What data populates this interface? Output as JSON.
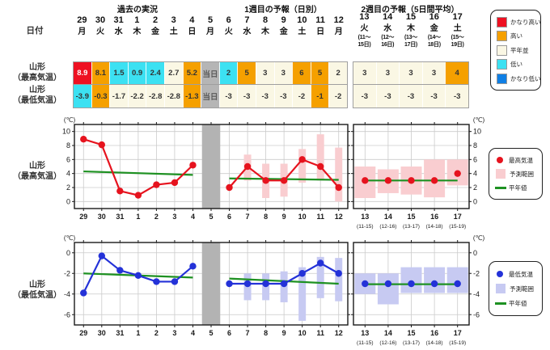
{
  "headers": {
    "past": "過去の実況",
    "week1": "1週目の予報（日別）",
    "week2": "2週目の予報（5日間平均）",
    "date_label": "日付",
    "row_max_l1": "山形",
    "row_max_l2": "（最高気温）",
    "row_min_l1": "山形",
    "row_min_l2": "（最低気温）"
  },
  "colors": {
    "very_high": "#ee1122",
    "high": "#f5a000",
    "normal": "#faf7e4",
    "low": "#3ce1f2",
    "very_low": "#0f7fe5",
    "today_bg": "#b5b5b5",
    "offday": "#b3b3b3",
    "normal_line": "#1e9122"
  },
  "category_legend": [
    {
      "label": "かなり高い",
      "color": "#ee1122"
    },
    {
      "label": "高い",
      "color": "#f5a000"
    },
    {
      "label": "平年並",
      "color": "#faf7e4"
    },
    {
      "label": "低い",
      "color": "#3ce1f2"
    },
    {
      "label": "かなり低い",
      "color": "#0f7fe5"
    }
  ],
  "table": {
    "block1": [
      {
        "day": "29",
        "wd": "月",
        "max": "8.9",
        "max_cat": "very_high",
        "min": "-3.9",
        "min_cat": "low"
      },
      {
        "day": "30",
        "wd": "火",
        "max": "8.1",
        "max_cat": "high",
        "min": "-0.3",
        "min_cat": "high"
      },
      {
        "day": "31",
        "wd": "水",
        "max": "1.5",
        "max_cat": "low",
        "min": "-1.7",
        "min_cat": "normal"
      },
      {
        "day": "1",
        "wd": "木",
        "max": "0.9",
        "max_cat": "low",
        "min": "-2.2",
        "min_cat": "normal"
      },
      {
        "day": "2",
        "wd": "金",
        "max": "2.4",
        "max_cat": "low",
        "min": "-2.8",
        "min_cat": "normal"
      },
      {
        "day": "3",
        "wd": "土",
        "max": "2.7",
        "max_cat": "normal",
        "min": "-2.8",
        "min_cat": "normal"
      },
      {
        "day": "4",
        "wd": "日",
        "max": "5.2",
        "max_cat": "high",
        "min": "-1.3",
        "min_cat": "high"
      },
      {
        "day": "5",
        "wd": "月",
        "max": "当日",
        "max_cat": "today",
        "min": "当日",
        "min_cat": "today"
      },
      {
        "day": "6",
        "wd": "火",
        "max": "2",
        "max_cat": "low",
        "min": "-3",
        "min_cat": "normal"
      },
      {
        "day": "7",
        "wd": "水",
        "max": "5",
        "max_cat": "high",
        "min": "-3",
        "min_cat": "normal"
      },
      {
        "day": "8",
        "wd": "木",
        "max": "3",
        "max_cat": "normal",
        "min": "-3",
        "min_cat": "normal"
      },
      {
        "day": "9",
        "wd": "金",
        "max": "3",
        "max_cat": "normal",
        "min": "-3",
        "min_cat": "normal"
      },
      {
        "day": "10",
        "wd": "土",
        "max": "6",
        "max_cat": "high",
        "min": "-2",
        "min_cat": "normal"
      },
      {
        "day": "11",
        "wd": "日",
        "max": "5",
        "max_cat": "high",
        "min": "-1",
        "min_cat": "high"
      },
      {
        "day": "12",
        "wd": "月",
        "max": "2",
        "max_cat": "normal",
        "min": "-2",
        "min_cat": "normal"
      }
    ],
    "block2": [
      {
        "day": "13",
        "wd": "火",
        "range1": "(11～",
        "range2": "15日)",
        "max": "3",
        "max_cat": "normal",
        "min": "-3",
        "min_cat": "normal"
      },
      {
        "day": "14",
        "wd": "水",
        "range1": "(12～",
        "range2": "16日)",
        "max": "3",
        "max_cat": "normal",
        "min": "-3",
        "min_cat": "normal"
      },
      {
        "day": "15",
        "wd": "木",
        "range1": "(13～",
        "range2": "17日)",
        "max": "3",
        "max_cat": "normal",
        "min": "-3",
        "min_cat": "normal"
      },
      {
        "day": "16",
        "wd": "金",
        "range1": "(14～",
        "range2": "18日)",
        "max": "3",
        "max_cat": "normal",
        "min": "-3",
        "min_cat": "normal"
      },
      {
        "day": "17",
        "wd": "土",
        "range1": "(15～",
        "range2": "19日)",
        "max": "4",
        "max_cat": "high",
        "min": "-3",
        "min_cat": "normal"
      }
    ]
  },
  "chart_data": [
    {
      "type": "line",
      "id": "max",
      "title": "山形（最高気温）",
      "unit": "(℃)",
      "ylim": [
        -1,
        11
      ],
      "yticks": [
        0,
        2,
        4,
        6,
        8,
        10
      ],
      "days": [
        "29",
        "30",
        "31",
        "1",
        "2",
        "3",
        "4",
        "5",
        "6",
        "7",
        "8",
        "9",
        "10",
        "11",
        "12"
      ],
      "values": [
        8.9,
        8.1,
        1.5,
        0.9,
        2.4,
        2.7,
        5.2,
        null,
        2,
        5,
        3,
        3,
        6,
        5,
        2
      ],
      "forecast_range": [
        null,
        null,
        null,
        null,
        null,
        null,
        null,
        null,
        null,
        [
          3,
          6.7
        ],
        [
          0.5,
          5.4
        ],
        [
          0.7,
          5.4
        ],
        [
          2.7,
          7.5
        ],
        [
          3,
          9.6
        ],
        [
          0,
          7.7
        ]
      ],
      "today_index": 7,
      "normal_segments": [
        {
          "i0": 0,
          "i1": 6,
          "v0": 4.3,
          "v1": 3.8
        },
        {
          "i0": 8,
          "i1": 14,
          "v0": 3.3,
          "v1": 3.1
        }
      ],
      "week2": {
        "days": [
          "13",
          "14",
          "15",
          "16",
          "17"
        ],
        "subs": [
          "(11-15)",
          "(12-16)",
          "(13-17)",
          "(14-18)",
          "(15-19)"
        ],
        "values": [
          3,
          3,
          3,
          3,
          4
        ],
        "ranges": [
          [
            0.5,
            5
          ],
          [
            1.2,
            4.6
          ],
          [
            1,
            5
          ],
          [
            0.6,
            6
          ],
          [
            2.3,
            6
          ]
        ],
        "normal": 3.0
      },
      "legend": [
        {
          "type": "dot",
          "label": "最高気温"
        },
        {
          "type": "band",
          "label": "予測範囲"
        },
        {
          "type": "line",
          "label": "平年値"
        }
      ],
      "line_color": "#e6131e",
      "band_color": "#f9cdd0"
    },
    {
      "type": "line",
      "id": "min",
      "title": "山形（最低気温）",
      "unit": "(℃)",
      "ylim": [
        -7,
        1
      ],
      "yticks": [
        0,
        -2,
        -4,
        -6
      ],
      "days": [
        "29",
        "30",
        "31",
        "1",
        "2",
        "3",
        "4",
        "5",
        "6",
        "7",
        "8",
        "9",
        "10",
        "11",
        "12"
      ],
      "values": [
        -3.9,
        -0.3,
        -1.7,
        -2.2,
        -2.8,
        -2.8,
        -1.3,
        null,
        -3,
        -3,
        -3,
        -3,
        -2,
        -1,
        -2
      ],
      "forecast_range": [
        null,
        null,
        null,
        null,
        null,
        null,
        null,
        null,
        null,
        [
          -4.6,
          -2
        ],
        [
          -4.6,
          -2
        ],
        [
          -4.8,
          -1.8
        ],
        [
          -6.6,
          -1.4
        ],
        [
          -4.4,
          -0.4
        ],
        [
          -4.7,
          -0.5
        ]
      ],
      "today_index": 7,
      "normal_segments": [
        {
          "i0": 0,
          "i1": 6,
          "v0": -2.0,
          "v1": -2.4
        },
        {
          "i0": 8,
          "i1": 14,
          "v0": -2.5,
          "v1": -3.0
        }
      ],
      "week2": {
        "days": [
          "13",
          "14",
          "15",
          "16",
          "17"
        ],
        "subs": [
          "(11-15)",
          "(12-16)",
          "(13-17)",
          "(14-18)",
          "(15-19)"
        ],
        "values": [
          -3,
          -3,
          -3,
          -3,
          -3
        ],
        "ranges": [
          [
            -4,
            -2
          ],
          [
            -5,
            -2
          ],
          [
            -3.9,
            -1.4
          ],
          [
            -3.9,
            -1.4
          ],
          [
            -3.9,
            -1.4
          ]
        ],
        "normal": -3.05
      },
      "legend": [
        {
          "type": "dot",
          "label": "最低気温"
        },
        {
          "type": "band",
          "label": "予測範囲"
        },
        {
          "type": "line",
          "label": "平年値"
        }
      ],
      "line_color": "#2432d8",
      "band_color": "#c7caf2"
    }
  ]
}
